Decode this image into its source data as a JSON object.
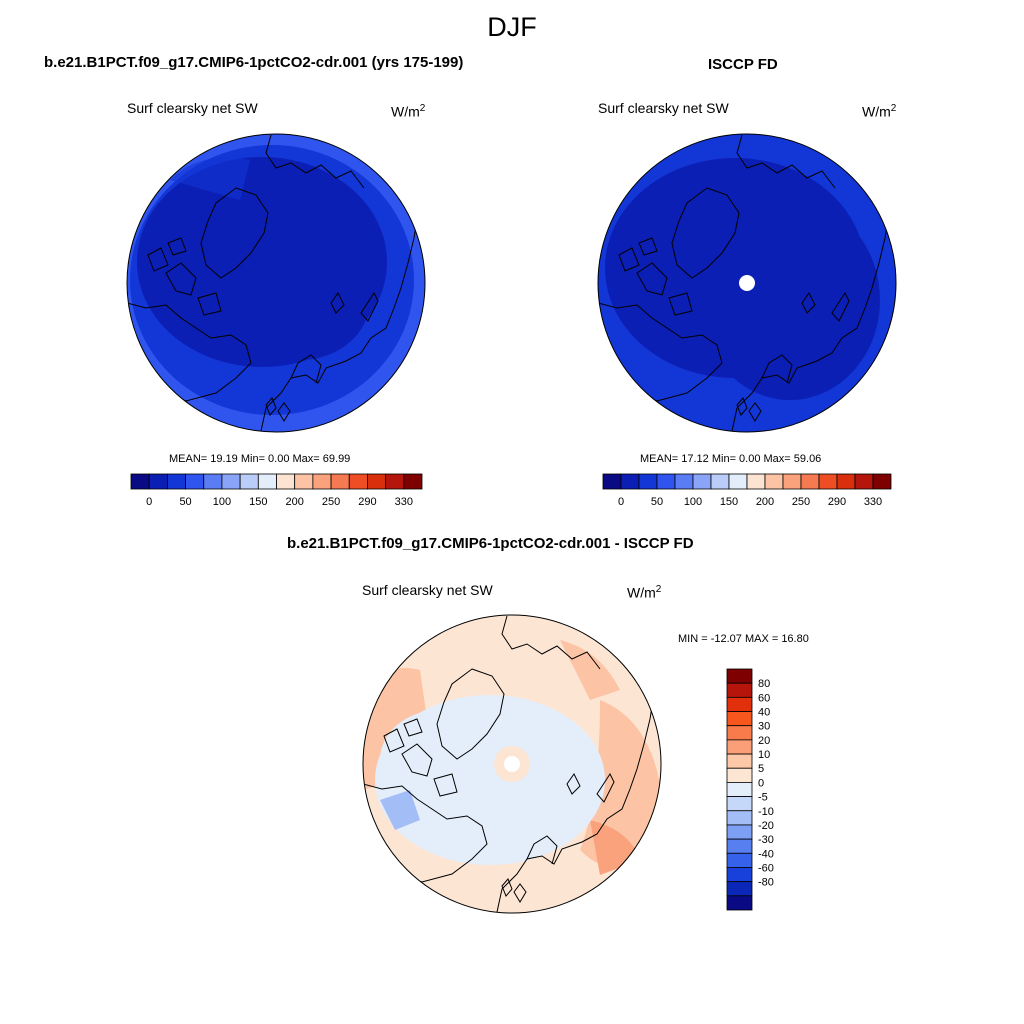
{
  "title": "DJF",
  "panels": [
    {
      "case": "b.e21.B1PCT.f09_g17.CMIP6-1pctCO2-cdr.001 (yrs 175-199)",
      "variable": "Surf clearsky net SW",
      "units": "W/m",
      "units_sup": "2",
      "stats": "MEAN=  19.19  Min=   0.00  Max=  69.99"
    },
    {
      "case": "ISCCP FD",
      "variable": "Surf clearsky net SW",
      "units": "W/m",
      "units_sup": "2",
      "stats": "MEAN=  17.12  Min=   0.00  Max=  59.06"
    }
  ],
  "difference": {
    "title": "b.e21.B1PCT.f09_g17.CMIP6-1pctCO2-cdr.001 - ISCCP FD",
    "variable": "Surf clearsky net SW",
    "units": "W/m",
    "units_sup": "2",
    "minmax": "MIN = -12.07 MAX =  16.80"
  },
  "colorbar_main": {
    "colors": [
      "#0a0a84",
      "#0b1fb4",
      "#1336d6",
      "#2f55ee",
      "#5a7df5",
      "#8aa5f7",
      "#b9cdf8",
      "#e4eefb",
      "#fde3d2",
      "#fcc4a4",
      "#f9a27c",
      "#f57a52",
      "#ef4e24",
      "#d92f0c",
      "#b5150a",
      "#7f0000"
    ],
    "tick_labels": [
      "0",
      "50",
      "100",
      "150",
      "200",
      "250",
      "290",
      "330"
    ]
  },
  "colorbar_diff": {
    "colors": [
      "#7f0000",
      "#b5150a",
      "#e2300c",
      "#f7561c",
      "#f97a4a",
      "#fb9f78",
      "#fdc8a8",
      "#fde5d4",
      "#e4eefb",
      "#c5d8fa",
      "#a3bef7",
      "#7d9ff4",
      "#577ff0",
      "#3661ea",
      "#1841dc",
      "#0b27b8",
      "#0a0a84"
    ],
    "tick_labels": [
      "80",
      "60",
      "40",
      "30",
      "20",
      "10",
      "5",
      "0",
      "-5",
      "-10",
      "-20",
      "-30",
      "-40",
      "-60",
      "-80"
    ]
  }
}
